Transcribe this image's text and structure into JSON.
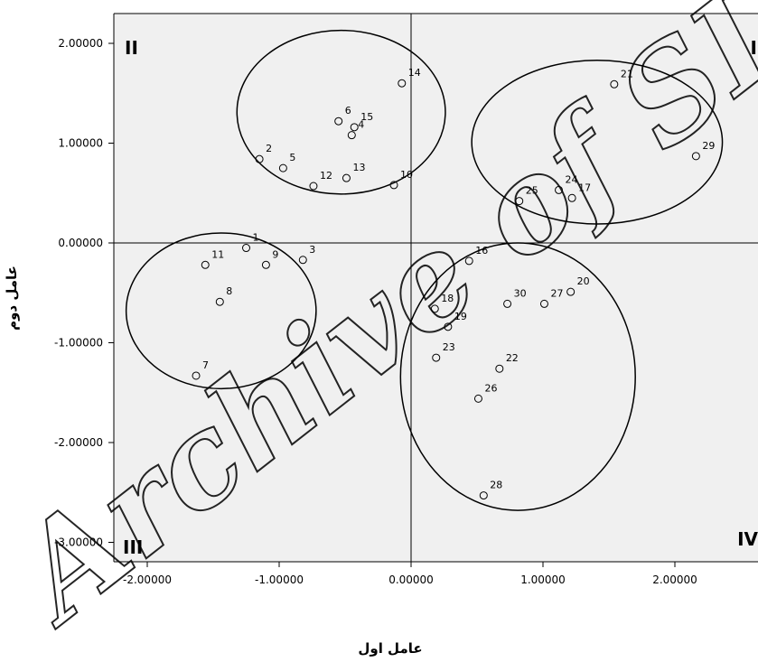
{
  "chart_data": {
    "type": "scatter",
    "xlabel": "عامل اول",
    "ylabel": "عامل دوم",
    "xlim": [
      -2.2,
      2.6
    ],
    "ylim": [
      -3.3,
      2.3
    ],
    "x_ticks": [
      -2,
      -1,
      0,
      1,
      2
    ],
    "x_tick_labels": [
      "-2.00000",
      "-1.00000",
      "0.00000",
      "1.00000",
      "2.00000"
    ],
    "y_ticks": [
      2,
      1,
      0,
      -1,
      -2,
      -3
    ],
    "y_tick_labels": [
      "2.00000",
      "1.00000",
      "0.00000",
      "-1.00000",
      "-2.00000",
      "-3.00000"
    ],
    "grid": false,
    "reference_lines": {
      "x": 0,
      "y": 0
    },
    "quadrant_labels": {
      "top_left": "II",
      "top_right": "I",
      "bottom_left": "III",
      "bottom_right": "IV"
    },
    "points": [
      {
        "label": "1",
        "x": -1.25,
        "y": -0.05
      },
      {
        "label": "2",
        "x": -1.15,
        "y": 0.84
      },
      {
        "label": "3",
        "x": -0.82,
        "y": -0.17
      },
      {
        "label": "4",
        "x": -0.45,
        "y": 1.08
      },
      {
        "label": "5",
        "x": -0.97,
        "y": 0.75
      },
      {
        "label": "6",
        "x": -0.55,
        "y": 1.22
      },
      {
        "label": "7",
        "x": -1.63,
        "y": -1.33
      },
      {
        "label": "8",
        "x": -1.45,
        "y": -0.59
      },
      {
        "label": "9",
        "x": -1.1,
        "y": -0.22
      },
      {
        "label": "10",
        "x": -0.13,
        "y": 0.58
      },
      {
        "label": "11",
        "x": -1.56,
        "y": -0.22
      },
      {
        "label": "12",
        "x": -0.74,
        "y": 0.57
      },
      {
        "label": "13",
        "x": -0.49,
        "y": 0.65
      },
      {
        "label": "14",
        "x": -0.07,
        "y": 1.6
      },
      {
        "label": "15",
        "x": -0.43,
        "y": 1.16
      },
      {
        "label": "16",
        "x": 0.44,
        "y": -0.18
      },
      {
        "label": "17",
        "x": 1.22,
        "y": 0.45
      },
      {
        "label": "18",
        "x": 0.18,
        "y": -0.66
      },
      {
        "label": "19",
        "x": 0.28,
        "y": -0.84
      },
      {
        "label": "20",
        "x": 1.21,
        "y": -0.49
      },
      {
        "label": "21",
        "x": 1.54,
        "y": 1.59
      },
      {
        "label": "22",
        "x": 0.67,
        "y": -1.26
      },
      {
        "label": "23",
        "x": 0.19,
        "y": -1.15
      },
      {
        "label": "24",
        "x": 1.12,
        "y": 0.53
      },
      {
        "label": "25",
        "x": 0.82,
        "y": 0.42
      },
      {
        "label": "26",
        "x": 0.51,
        "y": -1.56
      },
      {
        "label": "27",
        "x": 1.01,
        "y": -0.61
      },
      {
        "label": "28",
        "x": 0.55,
        "y": -2.53
      },
      {
        "label": "29",
        "x": 2.16,
        "y": 0.87
      },
      {
        "label": "30",
        "x": 0.73,
        "y": -0.61
      }
    ],
    "clusters": [
      {
        "quadrant": "II",
        "cx": -0.53,
        "cy": 1.31,
        "rx": 0.79,
        "ry": 0.82
      },
      {
        "quadrant": "I",
        "cx": 1.41,
        "cy": 1.01,
        "rx": 0.95,
        "ry": 0.82
      },
      {
        "quadrant": "III",
        "cx": -1.44,
        "cy": -0.68,
        "rx": 0.72,
        "ry": 0.78
      },
      {
        "quadrant": "IV",
        "cx": 0.81,
        "cy": -1.34,
        "rx": 0.89,
        "ry": 1.34
      }
    ]
  },
  "watermark": "Archive of SID"
}
